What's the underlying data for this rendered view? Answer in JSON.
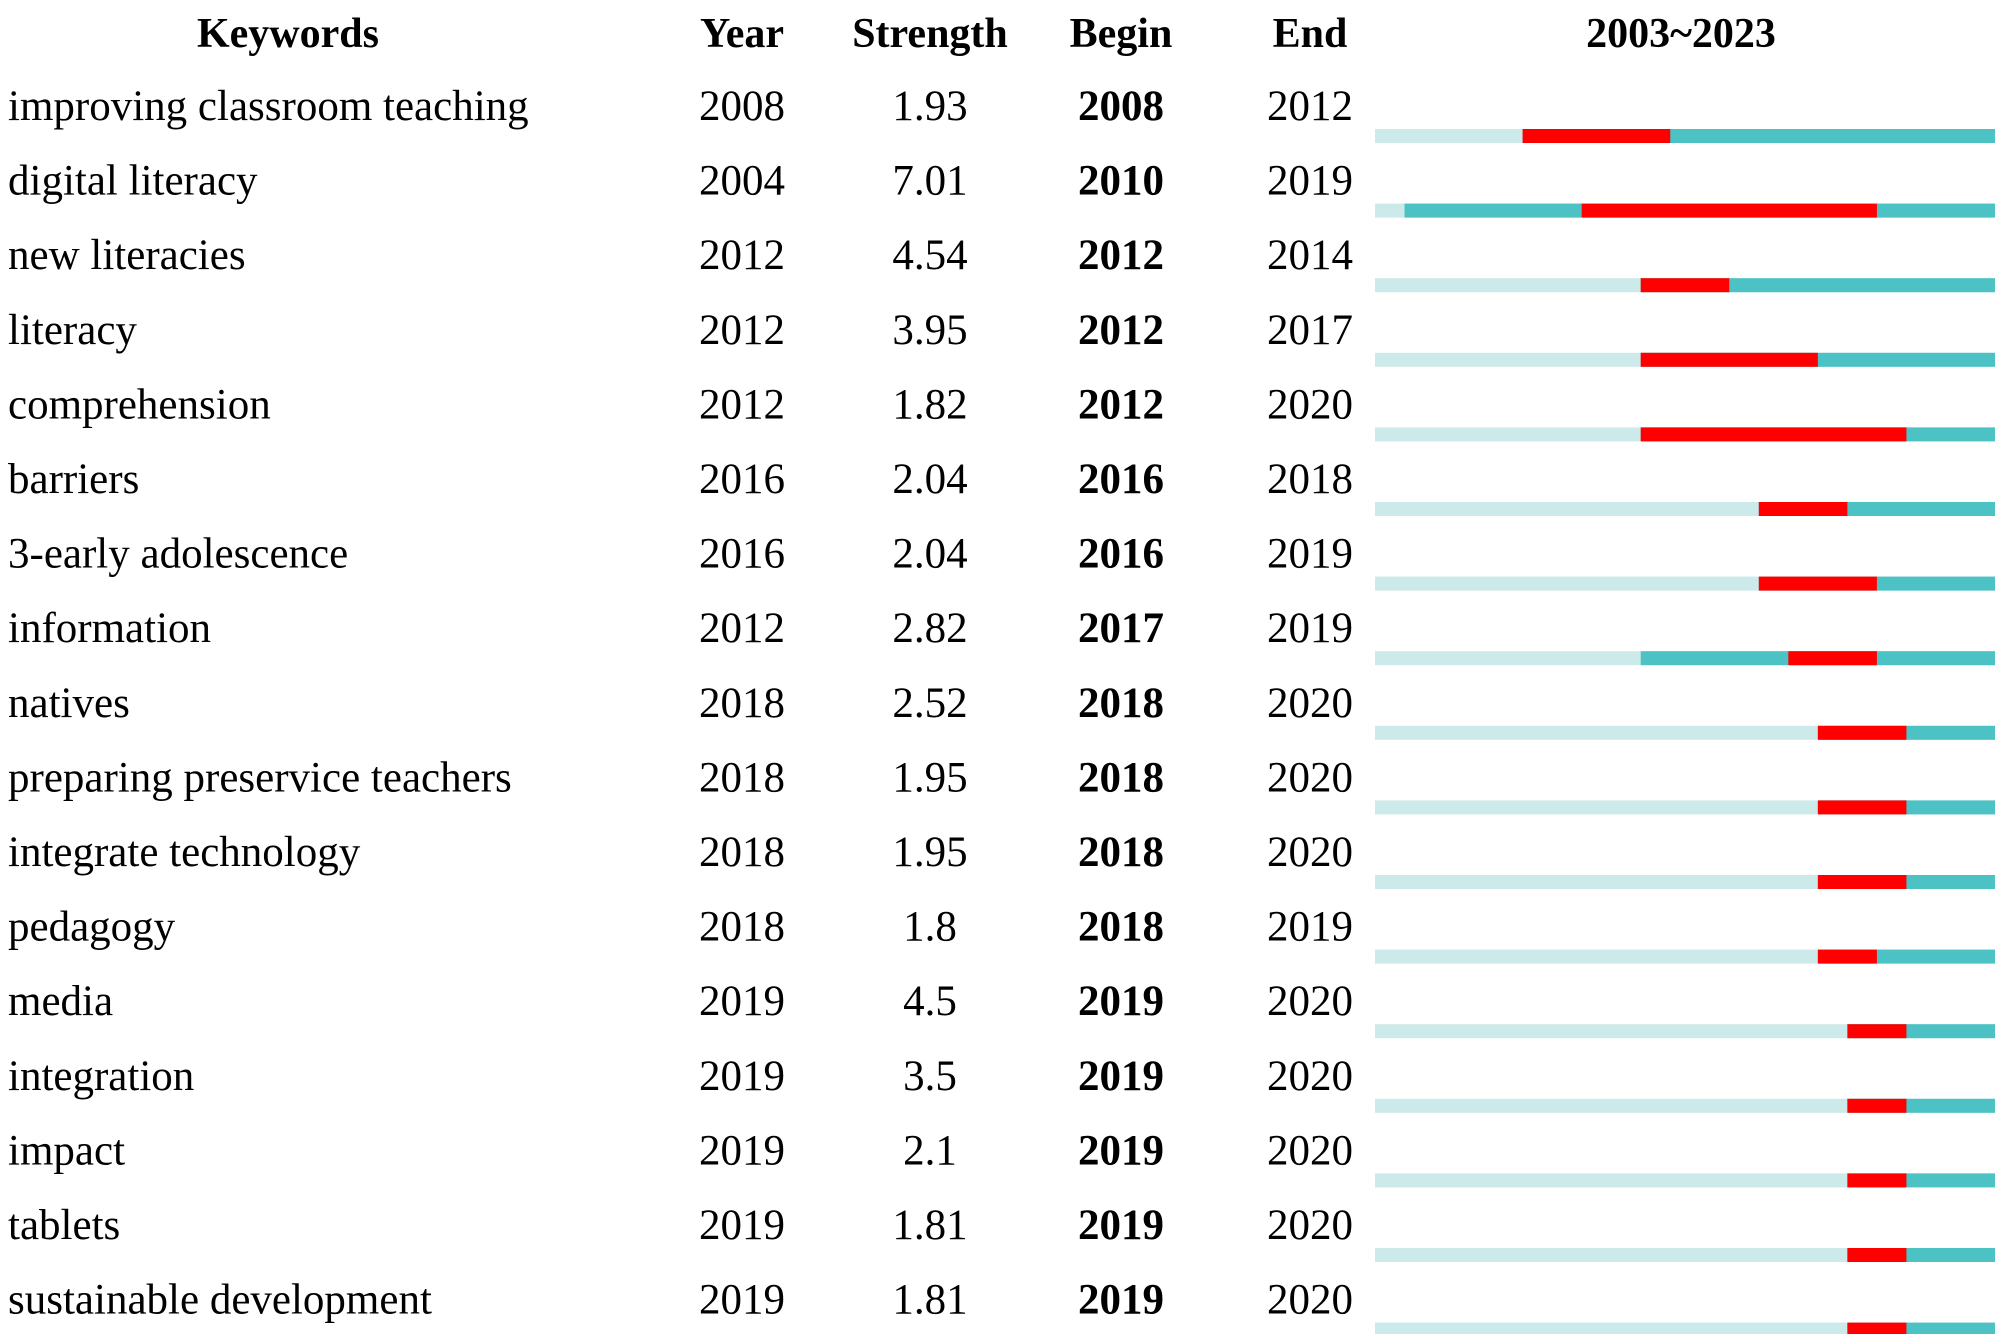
{
  "chart_data": {
    "type": "table",
    "headers": {
      "keywords": "Keywords",
      "year": "Year",
      "strength": "Strength",
      "begin": "Begin",
      "end": "End",
      "timeline": "2003~2023"
    },
    "timeline_range": [
      2003,
      2023
    ],
    "colors": {
      "burst": "#ff0000",
      "active": "#4cc2c4",
      "inactive": "#cdeaea"
    },
    "rows": [
      {
        "keyword": "improving classroom teaching",
        "year": "2008",
        "strength": "1.93",
        "begin": "2008",
        "end": "2012"
      },
      {
        "keyword": "digital literacy",
        "year": "2004",
        "strength": "7.01",
        "begin": "2010",
        "end": "2019"
      },
      {
        "keyword": "new literacies",
        "year": "2012",
        "strength": "4.54",
        "begin": "2012",
        "end": "2014"
      },
      {
        "keyword": "literacy",
        "year": "2012",
        "strength": "3.95",
        "begin": "2012",
        "end": "2017"
      },
      {
        "keyword": "comprehension",
        "year": "2012",
        "strength": "1.82",
        "begin": "2012",
        "end": "2020"
      },
      {
        "keyword": "barriers",
        "year": "2016",
        "strength": "2.04",
        "begin": "2016",
        "end": "2018"
      },
      {
        "keyword": "3-early adolescence",
        "year": "2016",
        "strength": "2.04",
        "begin": "2016",
        "end": "2019"
      },
      {
        "keyword": "information",
        "year": "2012",
        "strength": "2.82",
        "begin": "2017",
        "end": "2019"
      },
      {
        "keyword": "natives",
        "year": "2018",
        "strength": "2.52",
        "begin": "2018",
        "end": "2020"
      },
      {
        "keyword": "preparing preservice teachers",
        "year": "2018",
        "strength": "1.95",
        "begin": "2018",
        "end": "2020"
      },
      {
        "keyword": "integrate technology",
        "year": "2018",
        "strength": "1.95",
        "begin": "2018",
        "end": "2020"
      },
      {
        "keyword": "pedagogy",
        "year": "2018",
        "strength": "1.8",
        "begin": "2018",
        "end": "2019"
      },
      {
        "keyword": "media",
        "year": "2019",
        "strength": "4.5",
        "begin": "2019",
        "end": "2020"
      },
      {
        "keyword": "integration",
        "year": "2019",
        "strength": "3.5",
        "begin": "2019",
        "end": "2020"
      },
      {
        "keyword": "impact",
        "year": "2019",
        "strength": "2.1",
        "begin": "2019",
        "end": "2020"
      },
      {
        "keyword": "tablets",
        "year": "2019",
        "strength": "1.81",
        "begin": "2019",
        "end": "2020"
      },
      {
        "keyword": "sustainable development",
        "year": "2019",
        "strength": "1.81",
        "begin": "2019",
        "end": "2020"
      }
    ]
  }
}
